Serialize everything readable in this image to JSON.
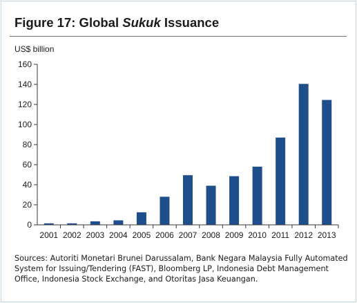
{
  "figure": {
    "title_prefix": "Figure 17: Global ",
    "title_italic": "Sukuk",
    "title_suffix": " Issuance",
    "sources": "Sources: Autoriti Monetari Brunei Darussalam, Bank Negara Malaysia Fully Automated System for Issuing/Tendering (FAST), Bloomberg LP, Indonesia Debt Management Office, Indonesia Stock Exchange, and Otoritas Jasa Keuangan."
  },
  "colors": {
    "bar": "#1f4e8c",
    "axis": "#333333",
    "frame": "#bcd3e4"
  },
  "chart_data": {
    "type": "bar",
    "ylabel": "US$ billion",
    "xlabel": "",
    "ylim": [
      0,
      160
    ],
    "yticks": [
      0,
      20,
      40,
      60,
      80,
      100,
      120,
      140,
      160
    ],
    "grid": false,
    "categories": [
      "2001",
      "2002",
      "2003",
      "2004",
      "2005",
      "2006",
      "2007",
      "2008",
      "2009",
      "2010",
      "2011",
      "2012",
      "2013"
    ],
    "values": [
      1.5,
      1.5,
      3.5,
      4.5,
      12.5,
      28,
      49.5,
      39,
      48.5,
      58,
      87,
      140.5,
      124.5
    ]
  }
}
